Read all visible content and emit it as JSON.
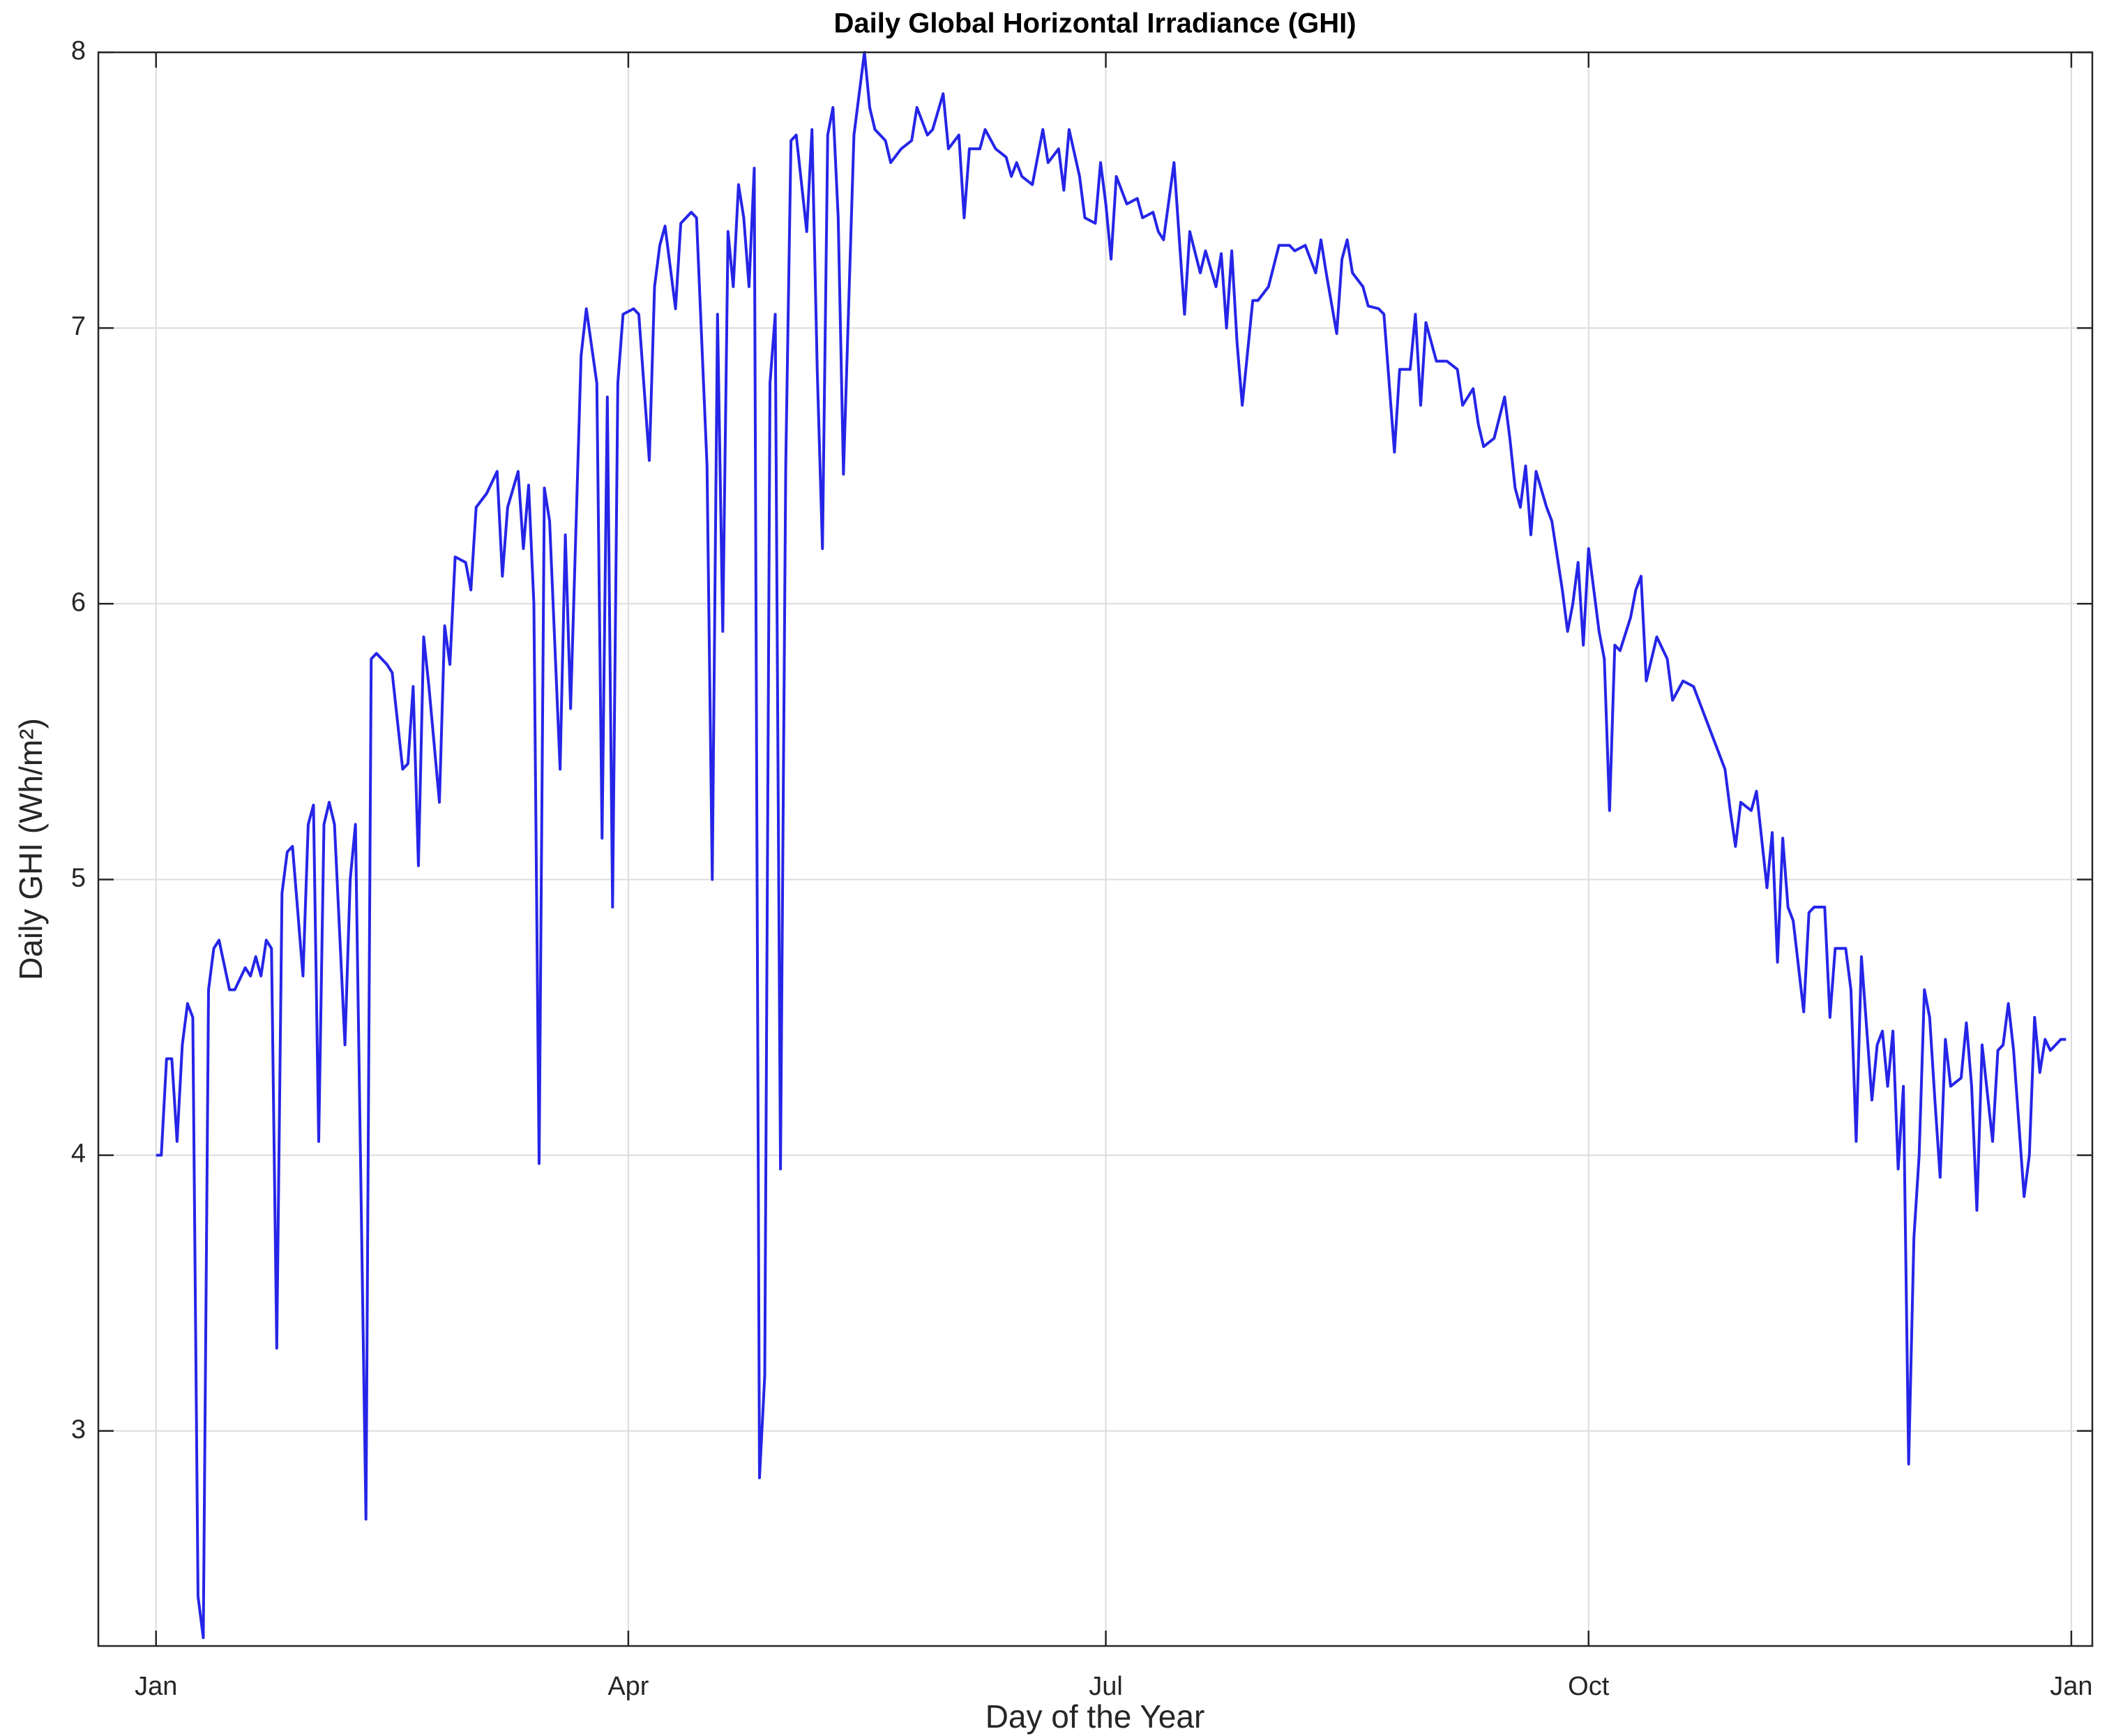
{
  "chart_data": {
    "type": "line",
    "title": "Daily Global Horizontal Irradiance (GHI)",
    "x_label": "Day of the Year",
    "y_label": "Daily GHI (Wh/m²)",
    "color": "#2525e8",
    "grid": true,
    "xlim": [
      -10,
      370
    ],
    "ylim": [
      2.22,
      8
    ],
    "xticks": [
      {
        "value": 1,
        "label": "Jan"
      },
      {
        "value": 91,
        "label": "Apr"
      },
      {
        "value": 182,
        "label": "Jul"
      },
      {
        "value": 274,
        "label": "Oct"
      },
      {
        "value": 366,
        "label": "Jan"
      }
    ],
    "yticks": [
      3,
      4,
      5,
      6,
      7,
      8
    ],
    "x": [
      1,
      2,
      3,
      4,
      5,
      6,
      7,
      8,
      9,
      10,
      11,
      12,
      13,
      15,
      16,
      18,
      19,
      20,
      21,
      22,
      23,
      24,
      25,
      26,
      27,
      29,
      30,
      31,
      32,
      33,
      34,
      35,
      37,
      38,
      39,
      41,
      42,
      43,
      45,
      46,
      48,
      49,
      50,
      51,
      52,
      53,
      55,
      56,
      57,
      58,
      60,
      61,
      62,
      64,
      66,
      67,
      68,
      70,
      71,
      72,
      73,
      74,
      75,
      76,
      78,
      79,
      80,
      82,
      83,
      85,
      86,
      87,
      88,
      89,
      90,
      92,
      93,
      95,
      96,
      97,
      98,
      100,
      101,
      103,
      104,
      106,
      107,
      108,
      109,
      110,
      111,
      112,
      113,
      114,
      115,
      116,
      117,
      118,
      119,
      120,
      121,
      122,
      123,
      125,
      126,
      127,
      128,
      129,
      130,
      131,
      132,
      134,
      135,
      136,
      137,
      138,
      140,
      141,
      143,
      145,
      146,
      148,
      149,
      151,
      152,
      154,
      155,
      156,
      158,
      159,
      161,
      163,
      164,
      165,
      166,
      168,
      170,
      171,
      173,
      174,
      175,
      177,
      178,
      180,
      181,
      182,
      183,
      184,
      186,
      188,
      189,
      191,
      192,
      193,
      195,
      197,
      198,
      200,
      201,
      203,
      204,
      205,
      206,
      207,
      208,
      210,
      211,
      213,
      215,
      217,
      218,
      220,
      222,
      223,
      224,
      226,
      227,
      228,
      229,
      231,
      232,
      234,
      235,
      237,
      238,
      240,
      241,
      242,
      243,
      245,
      247,
      249,
      250,
      252,
      253,
      254,
      256,
      258,
      259,
      260,
      261,
      262,
      263,
      264,
      266,
      267,
      269,
      270,
      271,
      272,
      273,
      274,
      275,
      276,
      277,
      278,
      279,
      280,
      282,
      283,
      284,
      285,
      287,
      289,
      290,
      292,
      294,
      296,
      298,
      300,
      301,
      302,
      303,
      305,
      306,
      308,
      309,
      310,
      311,
      312,
      313,
      315,
      316,
      317,
      319,
      320,
      321,
      323,
      324,
      325,
      326,
      328,
      329,
      330,
      331,
      332,
      333,
      334,
      335,
      336,
      337,
      338,
      339,
      340,
      341,
      342,
      343,
      345,
      346,
      347,
      348,
      349,
      351,
      352,
      353,
      354,
      355,
      357,
      358,
      359,
      360,
      361,
      362,
      364,
      365
    ],
    "values": [
      4.0,
      4.0,
      4.35,
      4.35,
      4.05,
      4.4,
      4.55,
      4.5,
      2.4,
      2.25,
      4.6,
      4.75,
      4.78,
      4.6,
      4.6,
      4.68,
      4.65,
      4.72,
      4.65,
      4.78,
      4.75,
      3.3,
      4.95,
      5.1,
      5.12,
      4.65,
      5.2,
      5.27,
      4.05,
      5.2,
      5.28,
      5.2,
      4.4,
      5.0,
      5.2,
      2.68,
      5.8,
      5.82,
      5.78,
      5.75,
      5.4,
      5.42,
      5.7,
      5.05,
      5.88,
      5.7,
      5.28,
      5.92,
      5.78,
      6.17,
      6.15,
      6.05,
      6.35,
      6.4,
      6.48,
      6.1,
      6.35,
      6.48,
      6.2,
      6.43,
      6.0,
      3.97,
      6.42,
      6.3,
      5.4,
      6.25,
      5.62,
      6.9,
      7.07,
      6.8,
      5.15,
      6.75,
      4.9,
      6.8,
      7.05,
      7.07,
      7.05,
      6.52,
      7.15,
      7.3,
      7.37,
      7.07,
      7.38,
      7.42,
      7.4,
      6.5,
      5.0,
      7.05,
      5.9,
      7.35,
      7.15,
      7.52,
      7.4,
      7.15,
      7.58,
      2.83,
      3.2,
      6.8,
      7.05,
      3.95,
      6.5,
      7.68,
      7.7,
      7.35,
      7.72,
      6.85,
      6.2,
      7.7,
      7.8,
      7.4,
      6.47,
      7.7,
      7.85,
      8.0,
      7.8,
      7.72,
      7.68,
      7.6,
      7.65,
      7.68,
      7.8,
      7.7,
      7.72,
      7.85,
      7.65,
      7.7,
      7.4,
      7.65,
      7.65,
      7.72,
      7.65,
      7.62,
      7.55,
      7.6,
      7.55,
      7.52,
      7.72,
      7.6,
      7.65,
      7.5,
      7.72,
      7.55,
      7.4,
      7.38,
      7.6,
      7.45,
      7.25,
      7.55,
      7.45,
      7.47,
      7.4,
      7.42,
      7.35,
      7.32,
      7.6,
      7.05,
      7.35,
      7.2,
      7.28,
      7.15,
      7.27,
      7.0,
      7.28,
      6.95,
      6.72,
      7.1,
      7.1,
      7.15,
      7.3,
      7.3,
      7.28,
      7.3,
      7.2,
      7.32,
      7.2,
      6.98,
      7.25,
      7.32,
      7.2,
      7.15,
      7.08,
      7.07,
      7.05,
      6.55,
      6.85,
      6.85,
      7.05,
      6.72,
      7.02,
      6.88,
      6.88,
      6.85,
      6.72,
      6.78,
      6.65,
      6.57,
      6.6,
      6.75,
      6.6,
      6.42,
      6.35,
      6.5,
      6.25,
      6.48,
      6.35,
      6.3,
      6.05,
      5.9,
      6.0,
      6.15,
      5.85,
      6.2,
      6.05,
      5.9,
      5.8,
      5.25,
      5.85,
      5.83,
      5.95,
      6.05,
      6.1,
      5.72,
      5.88,
      5.8,
      5.65,
      5.72,
      5.7,
      5.6,
      5.5,
      5.4,
      5.25,
      5.12,
      5.28,
      5.25,
      5.32,
      4.97,
      5.17,
      4.7,
      5.15,
      4.9,
      4.85,
      4.52,
      4.88,
      4.9,
      4.9,
      4.5,
      4.75,
      4.75,
      4.6,
      4.05,
      4.72,
      4.2,
      4.4,
      4.45,
      4.25,
      4.45,
      3.95,
      4.25,
      2.88,
      3.7,
      4.0,
      4.6,
      4.5,
      4.2,
      3.92,
      4.42,
      4.25,
      4.28,
      4.48,
      4.25,
      3.8,
      4.4,
      4.05,
      4.38,
      4.4,
      4.55,
      4.38,
      3.85,
      4.0,
      4.5,
      4.3,
      4.42,
      4.38,
      4.42,
      4.42
    ]
  }
}
